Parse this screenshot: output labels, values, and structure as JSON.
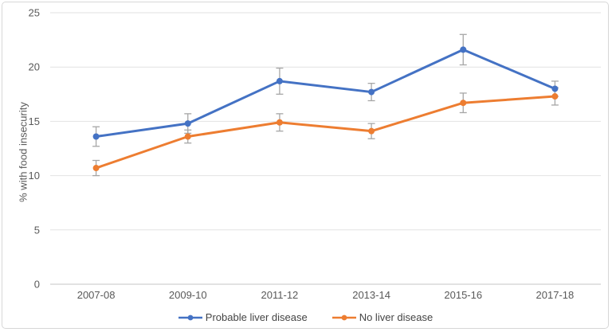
{
  "chart": {
    "background": "#ffffff",
    "border_color": "#d7d7d7",
    "gridline_color": "#e2e2e2",
    "axis_line_color": "#c6c6c6",
    "tick_label_color": "#595959",
    "legend_text_color": "#444444",
    "error_bar_color": "#a6a6a6"
  },
  "chart_data": {
    "type": "line",
    "title": "",
    "xlabel": "",
    "ylabel": "% with food insecurity",
    "categories": [
      "2007-08",
      "2009-10",
      "2011-12",
      "2013-14",
      "2015-16",
      "2017-18"
    ],
    "series": [
      {
        "name": "Probable liver disease",
        "color": "#4472C4",
        "values": [
          13.6,
          14.8,
          18.7,
          17.7,
          21.6,
          18.0
        ],
        "errors": [
          0.9,
          0.9,
          1.2,
          0.8,
          1.4,
          0.7
        ]
      },
      {
        "name": "No liver disease",
        "color": "#ED7D31",
        "values": [
          10.7,
          13.6,
          14.9,
          14.1,
          16.7,
          17.3
        ],
        "errors": [
          0.7,
          0.6,
          0.8,
          0.7,
          0.9,
          0.8
        ]
      }
    ],
    "ylim": [
      0,
      25
    ],
    "yticks": [
      0,
      5,
      10,
      15,
      20,
      25
    ],
    "grid": true,
    "error_bars": true,
    "legend_position": "bottom"
  }
}
